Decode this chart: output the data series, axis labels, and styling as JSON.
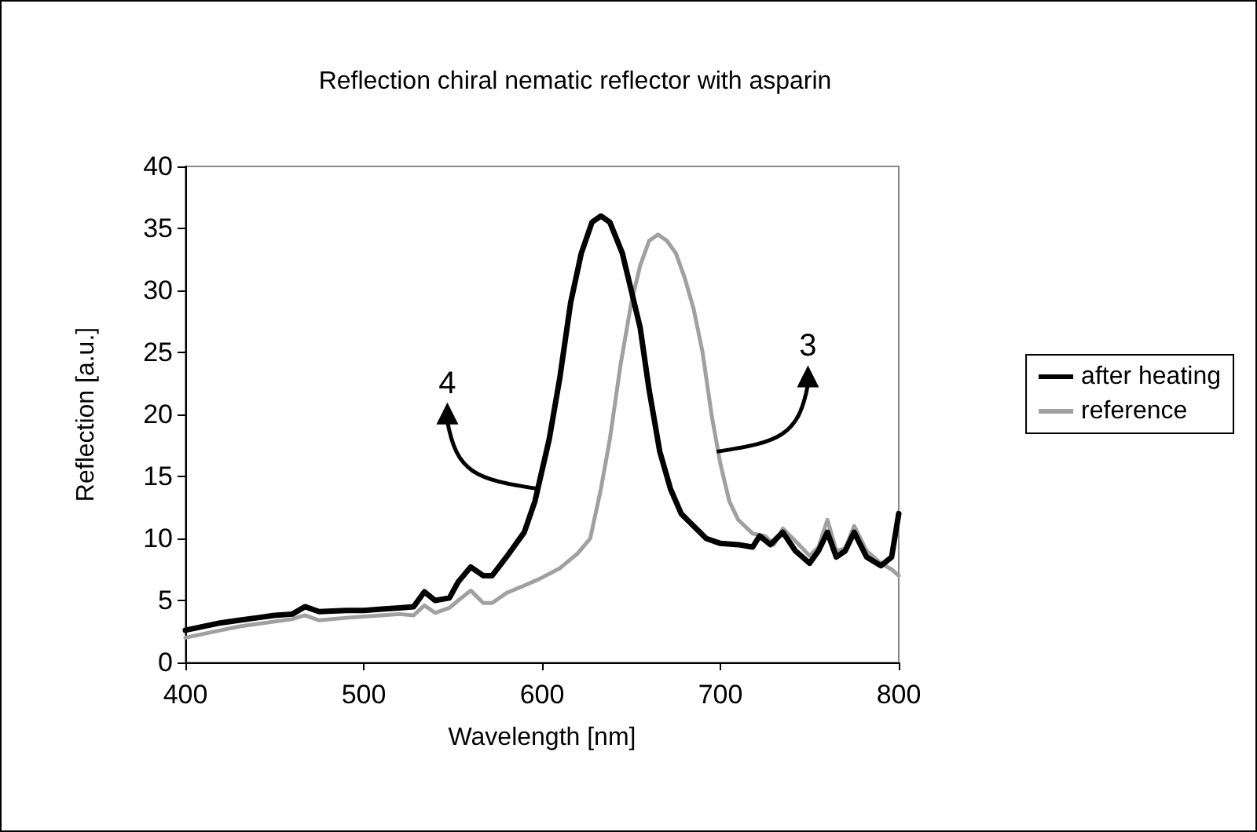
{
  "chart_data": {
    "type": "line",
    "title": "Reflection chiral nematic reflector with asparin",
    "xlabel": "Wavelength [nm]",
    "ylabel": "Reflection [a.u.]",
    "series": [
      {
        "name": "after heating",
        "color": "#000000",
        "x": [
          400,
          410,
          420,
          430,
          440,
          450,
          460,
          467,
          475,
          490,
          500,
          510,
          520,
          528,
          534,
          540,
          548,
          553,
          560,
          567,
          572,
          580,
          590,
          596,
          604,
          610,
          616,
          622,
          628,
          633,
          638,
          645,
          650,
          655,
          660,
          666,
          672,
          678,
          685,
          692,
          700,
          710,
          718,
          722,
          728,
          735,
          742,
          750,
          755,
          760,
          765,
          770,
          775,
          782,
          790,
          796,
          800
        ],
        "values": [
          2.6,
          2.9,
          3.2,
          3.4,
          3.6,
          3.8,
          3.9,
          4.5,
          4.1,
          4.2,
          4.2,
          4.3,
          4.4,
          4.5,
          5.7,
          5.0,
          5.2,
          6.5,
          7.7,
          7.0,
          7.0,
          8.5,
          10.5,
          13,
          18,
          23,
          29,
          33,
          35.5,
          36,
          35.5,
          33,
          30,
          27,
          22,
          17,
          14,
          12,
          11,
          10,
          9.6,
          9.5,
          9.3,
          10.2,
          9.5,
          10.5,
          9.0,
          8.0,
          9.0,
          10.5,
          8.5,
          9,
          10.5,
          8.5,
          7.8,
          8.5,
          12
        ]
      },
      {
        "name": "reference",
        "color": "#a0a0a0",
        "x": [
          400,
          410,
          420,
          430,
          440,
          450,
          460,
          467,
          475,
          490,
          500,
          510,
          520,
          528,
          534,
          540,
          548,
          553,
          560,
          567,
          572,
          580,
          590,
          598,
          610,
          620,
          627,
          633,
          638,
          644,
          650,
          655,
          660,
          665,
          670,
          675,
          680,
          685,
          690,
          695,
          700,
          705,
          710,
          718,
          725,
          730,
          735,
          742,
          750,
          755,
          760,
          765,
          770,
          775,
          782,
          790,
          796,
          800
        ],
        "values": [
          2.0,
          2.3,
          2.6,
          2.9,
          3.1,
          3.3,
          3.5,
          3.8,
          3.4,
          3.6,
          3.7,
          3.8,
          3.9,
          3.8,
          4.6,
          4.0,
          4.4,
          5.0,
          5.8,
          4.8,
          4.8,
          5.6,
          6.2,
          6.7,
          7.6,
          8.8,
          10,
          14,
          18,
          24,
          29,
          32,
          34,
          34.5,
          34,
          33,
          31,
          28.5,
          25,
          20,
          16,
          13,
          11.5,
          10.4,
          10.2,
          9.5,
          10.8,
          9.8,
          8.6,
          9.3,
          11.5,
          9,
          9.2,
          11,
          9,
          8,
          7.5,
          7
        ]
      }
    ],
    "xlim": [
      400,
      800
    ],
    "xticks": [
      400,
      500,
      600,
      700,
      800
    ],
    "ylim": [
      0,
      40
    ],
    "yticks": [
      0,
      5,
      10,
      15,
      20,
      25,
      30,
      35,
      40
    ],
    "annotations": [
      {
        "text": "4",
        "x": 598,
        "y": 14
      },
      {
        "text": "3",
        "x": 698,
        "y": 17
      }
    ],
    "grid": false,
    "legend": "right",
    "marker": "none",
    "line_style": "solid"
  }
}
